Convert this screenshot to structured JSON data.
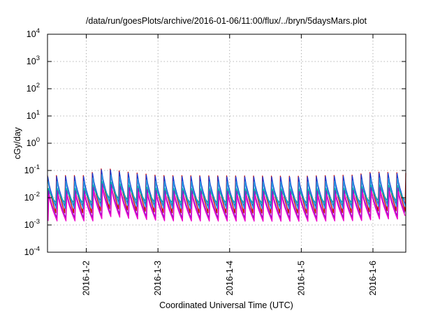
{
  "chart_data": {
    "type": "line",
    "title": "/data/run/goesPlots/archive/2016-01-06/11:00/flux/../bryn/5daysMars.plot",
    "xlabel": "Coordinated Universal Time (UTC)",
    "ylabel": "cGy/day",
    "y_scale": "log",
    "ylim": [
      0.0001,
      10000
    ],
    "xlim": [
      "2016-01-01 11:00",
      "2016-01-06 11:00"
    ],
    "grid": true,
    "legend": "none",
    "y_ticks": [
      {
        "base": "10",
        "exp": "-4",
        "value": 0.0001
      },
      {
        "base": "10",
        "exp": "-3",
        "value": 0.001
      },
      {
        "base": "10",
        "exp": "-2",
        "value": 0.01
      },
      {
        "base": "10",
        "exp": "-1",
        "value": 0.1
      },
      {
        "base": "10",
        "exp": "0",
        "value": 1
      },
      {
        "base": "10",
        "exp": "1",
        "value": 10
      },
      {
        "base": "10",
        "exp": "2",
        "value": 100
      },
      {
        "base": "10",
        "exp": "3",
        "value": 1000
      },
      {
        "base": "10",
        "exp": "4",
        "value": 10000
      }
    ],
    "x_ticks": [
      {
        "label": "2016-1-2",
        "date": "2016-01-02 00:00"
      },
      {
        "label": "2016-1-3",
        "date": "2016-01-03 00:00"
      },
      {
        "label": "2016-1-4",
        "date": "2016-01-04 00:00"
      },
      {
        "label": "2016-1-5",
        "date": "2016-01-05 00:00"
      },
      {
        "label": "2016-1-6",
        "date": "2016-01-06 00:00"
      }
    ],
    "pattern": {
      "cycle_hours": 3,
      "daily_envelope": [
        {
          "date": "2016-01-01 11:00",
          "factor": 1.0
        },
        {
          "date": "2016-01-02 00:00",
          "factor": 1.0
        },
        {
          "date": "2016-01-02 06:00",
          "factor": 1.9
        },
        {
          "date": "2016-01-02 12:00",
          "factor": 1.4
        },
        {
          "date": "2016-01-03 00:00",
          "factor": 1.0
        },
        {
          "date": "2016-01-05 00:00",
          "factor": 0.95
        },
        {
          "date": "2016-01-05 18:00",
          "factor": 1.05
        },
        {
          "date": "2016-01-06 00:00",
          "factor": 1.35
        },
        {
          "date": "2016-01-06 11:00",
          "factor": 1.25
        }
      ]
    },
    "series": [
      {
        "color": "#cc0000",
        "peak": 0.065,
        "trough": 0.0028
      },
      {
        "color": "#1a3fd6",
        "peak": 0.06,
        "trough": 0.0045
      },
      {
        "color": "#2a9be0",
        "peak": 0.04,
        "trough": 0.004
      },
      {
        "color": "#00b5a8",
        "peak": 0.022,
        "trough": 0.006
      },
      {
        "color": "#9010c8",
        "peak": 0.018,
        "trough": 0.0018
      },
      {
        "color": "#ee00cc",
        "peak": 0.013,
        "trough": 0.0014
      }
    ]
  }
}
